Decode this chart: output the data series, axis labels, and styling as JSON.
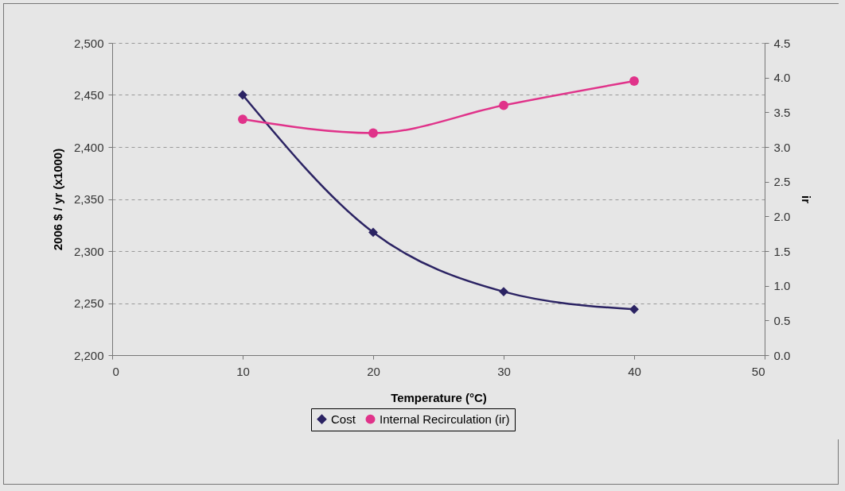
{
  "chart_data": {
    "type": "line",
    "xlabel": "Temperature (°C)",
    "ylabel": "2006 $ / yr (x1000)",
    "y2label": "ir",
    "x": [
      10,
      20,
      30,
      40
    ],
    "series": [
      {
        "name": "Cost",
        "color": "#2b2363",
        "values": [
          2450,
          2318,
          2261,
          2244
        ],
        "marker": "diamond"
      },
      {
        "name": "Internal Recirculation (ir)",
        "color": "#e0338a",
        "values": [
          3.4,
          3.2,
          3.6,
          3.95
        ],
        "axis": "y2",
        "marker": "circle"
      }
    ],
    "xlim": [
      0,
      50
    ],
    "xticks": [
      0,
      10,
      20,
      30,
      40,
      50
    ],
    "ylim": [
      2200,
      2500
    ],
    "yticks": [
      {
        "value": 2200,
        "label": "2,200"
      },
      {
        "value": 2250,
        "label": "2,250"
      },
      {
        "value": 2300,
        "label": "2,300"
      },
      {
        "value": 2350,
        "label": "2,350"
      },
      {
        "value": 2400,
        "label": "2,400"
      },
      {
        "value": 2450,
        "label": "2,450"
      },
      {
        "value": 2500,
        "label": "2,500"
      }
    ],
    "y2lim": [
      0,
      4.5
    ],
    "y2ticks": [
      {
        "value": 0,
        "label": "0.0"
      },
      {
        "value": 0.5,
        "label": "0.5"
      },
      {
        "value": 1,
        "label": "1.0"
      },
      {
        "value": 1.5,
        "label": "1.5"
      },
      {
        "value": 2,
        "label": "2.0"
      },
      {
        "value": 2.5,
        "label": "2.5"
      },
      {
        "value": 3,
        "label": "3.0"
      },
      {
        "value": 3.5,
        "label": "3.5"
      },
      {
        "value": 4,
        "label": "4.0"
      },
      {
        "value": 4.5,
        "label": "4.5"
      }
    ],
    "grid": "y",
    "legend": "bottom",
    "line_style": "solid"
  }
}
